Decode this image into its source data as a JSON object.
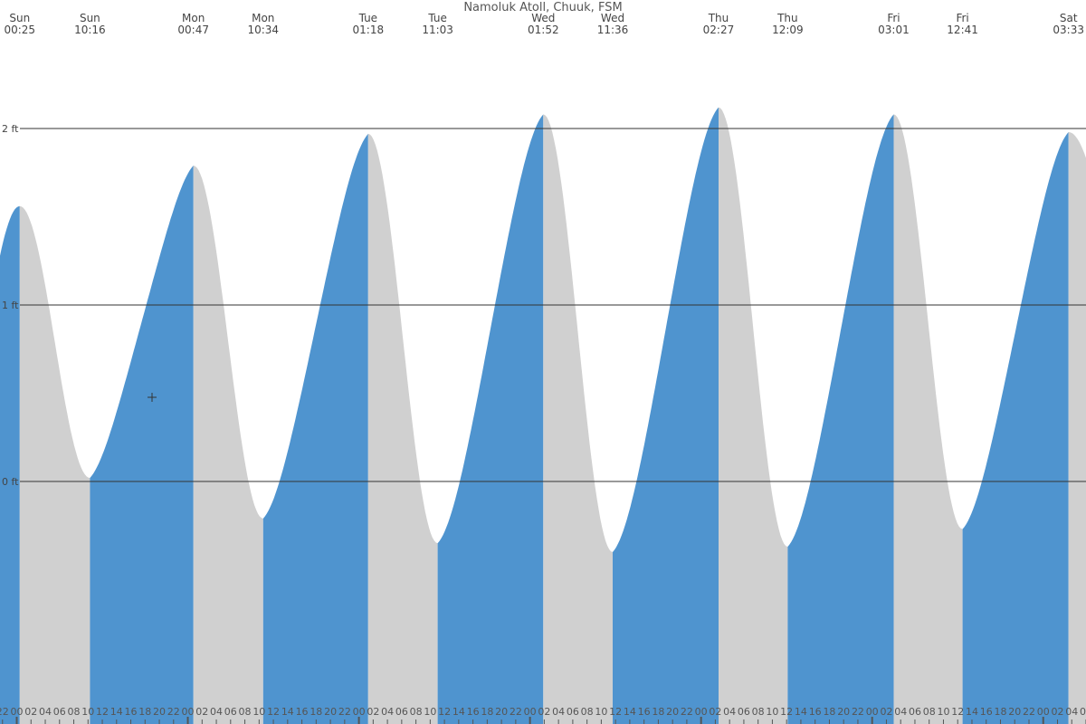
{
  "chart_data": {
    "type": "area",
    "title": "Namoluk Atoll, Chuuk, FSM",
    "xlabel": "",
    "ylabel": "",
    "unit": "ft",
    "ylim": [
      -1.3,
      2.7
    ],
    "y_ticks": [
      {
        "value": 0,
        "label": "0 ft"
      },
      {
        "value": 1,
        "label": "1 ft"
      },
      {
        "value": 2,
        "label": "2 ft"
      }
    ],
    "x_range_hours": [
      -2.35,
      150.0
    ],
    "grid": "horizontal",
    "colors": {
      "rising": "#4f94cf",
      "falling": "#d0d0d0",
      "grid": "#333333",
      "text": "#444444"
    },
    "tides": [
      {
        "day": "Sun",
        "time": "00:25",
        "hour": 0.4167,
        "height": 1.56,
        "type": "high"
      },
      {
        "day": "Sun",
        "time": "10:16",
        "hour": 10.2667,
        "height": 0.02,
        "type": "low"
      },
      {
        "day": "Mon",
        "time": "00:47",
        "hour": 24.7833,
        "height": 1.79,
        "type": "high"
      },
      {
        "day": "Mon",
        "time": "10:34",
        "hour": 34.5667,
        "height": -0.21,
        "type": "low"
      },
      {
        "day": "Tue",
        "time": "01:18",
        "hour": 49.3,
        "height": 1.97,
        "type": "high"
      },
      {
        "day": "Tue",
        "time": "11:03",
        "hour": 59.05,
        "height": -0.35,
        "type": "low"
      },
      {
        "day": "Wed",
        "time": "01:52",
        "hour": 73.8667,
        "height": 2.08,
        "type": "high"
      },
      {
        "day": "Wed",
        "time": "11:36",
        "hour": 83.6,
        "height": -0.4,
        "type": "low"
      },
      {
        "day": "Thu",
        "time": "02:27",
        "hour": 98.45,
        "height": 2.12,
        "type": "high"
      },
      {
        "day": "Thu",
        "time": "12:09",
        "hour": 108.15,
        "height": -0.37,
        "type": "low"
      },
      {
        "day": "Fri",
        "time": "03:01",
        "hour": 123.0167,
        "height": 2.08,
        "type": "high"
      },
      {
        "day": "Fri",
        "time": "12:41",
        "hour": 132.6833,
        "height": -0.27,
        "type": "low"
      },
      {
        "day": "Sat",
        "time": "03:33",
        "hour": 147.55,
        "height": 1.98,
        "type": "high"
      }
    ],
    "hour_ticks_every": 2,
    "edge_hour_labels": [
      "0",
      "22",
      "0"
    ]
  }
}
